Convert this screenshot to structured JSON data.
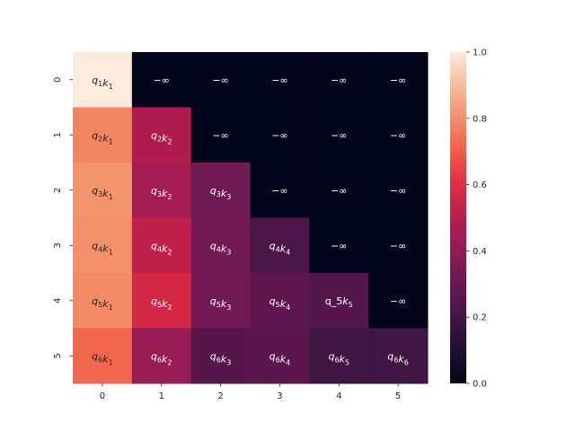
{
  "chart_data": {
    "type": "heatmap",
    "title": "",
    "xlabel": "",
    "ylabel": "",
    "x_categories": [
      "0",
      "1",
      "2",
      "3",
      "4",
      "5"
    ],
    "y_categories": [
      "0",
      "1",
      "2",
      "3",
      "4",
      "5"
    ],
    "colormap": "rocket",
    "vmin": 0.0,
    "vmax": 1.0,
    "colorbar_ticks": [
      "0.0",
      "0.2",
      "0.4",
      "0.6",
      "0.8",
      "1.0"
    ],
    "values": [
      [
        1.0,
        0.0,
        0.0,
        0.0,
        0.0,
        0.0
      ],
      [
        0.78,
        0.48,
        0.0,
        0.0,
        0.0,
        0.0
      ],
      [
        0.81,
        0.45,
        0.32,
        0.0,
        0.0,
        0.0
      ],
      [
        0.8,
        0.52,
        0.33,
        0.23,
        0.0,
        0.0
      ],
      [
        0.79,
        0.57,
        0.33,
        0.28,
        0.25,
        0.0
      ],
      [
        0.72,
        0.42,
        0.26,
        0.27,
        0.2,
        0.2
      ]
    ],
    "annotations": [
      [
        {
          "b": "q",
          "s": "1",
          "b2": "k",
          "s2": "1"
        },
        "−∞",
        "−∞",
        "−∞",
        "−∞",
        "−∞"
      ],
      [
        {
          "b": "q",
          "s": "2",
          "b2": "k",
          "s2": "1"
        },
        {
          "b": "q",
          "s": "2",
          "b2": "k",
          "s2": "2"
        },
        "−∞",
        "−∞",
        "−∞",
        "−∞"
      ],
      [
        {
          "b": "q",
          "s": "3",
          "b2": "k",
          "s2": "1"
        },
        {
          "b": "q",
          "s": "3",
          "b2": "k",
          "s2": "2"
        },
        {
          "b": "q",
          "s": "3",
          "b2": "k",
          "s2": "3"
        },
        "−∞",
        "−∞",
        "−∞"
      ],
      [
        {
          "b": "q",
          "s": "4",
          "b2": "k",
          "s2": "1"
        },
        {
          "b": "q",
          "s": "4",
          "b2": "k",
          "s2": "2"
        },
        {
          "b": "q",
          "s": "4",
          "b2": "k",
          "s2": "3"
        },
        {
          "b": "q",
          "s": "4",
          "b2": "k",
          "s2": "4"
        },
        "−∞",
        "−∞"
      ],
      [
        {
          "b": "q",
          "s": "5",
          "b2": "k",
          "s2": "1"
        },
        {
          "b": "q",
          "s": "5",
          "b2": "k",
          "s2": "2"
        },
        {
          "b": "q",
          "s": "5",
          "b2": "k",
          "s2": "3"
        },
        {
          "b": "q",
          "s": "5",
          "b2": "k",
          "s2": "4"
        },
        {
          "raw": "q_5",
          "b2": "k",
          "s2": "5"
        },
        "−∞"
      ],
      [
        {
          "b": "q",
          "s": "6",
          "b2": "k",
          "s2": "1"
        },
        {
          "b": "q",
          "s": "6",
          "b2": "k",
          "s2": "2"
        },
        {
          "b": "q",
          "s": "6",
          "b2": "k",
          "s2": "3"
        },
        {
          "b": "q",
          "s": "6",
          "b2": "k",
          "s2": "4"
        },
        {
          "b": "q",
          "s": "6",
          "b2": "k",
          "s2": "5"
        },
        {
          "b": "q",
          "s": "6",
          "b2": "k",
          "s2": "6"
        }
      ]
    ]
  }
}
